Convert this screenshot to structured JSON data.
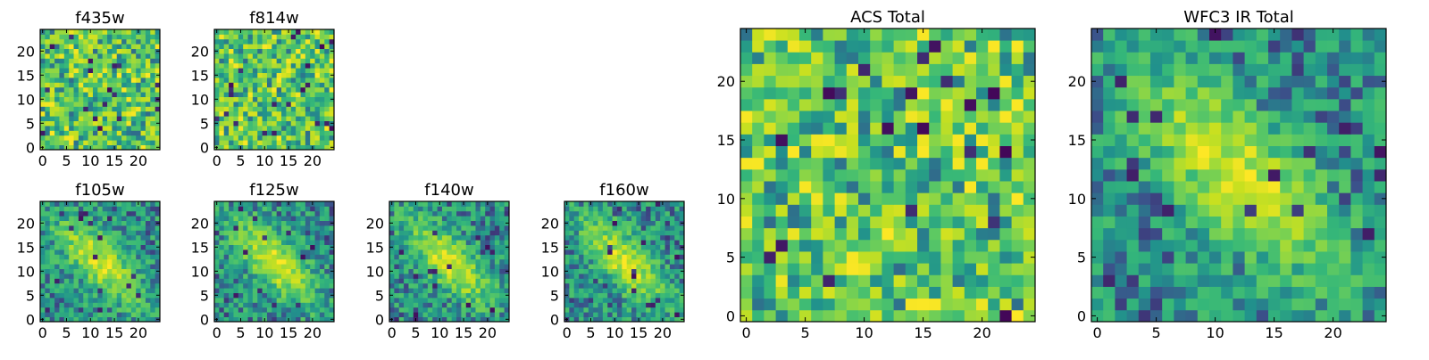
{
  "chart_data": [
    {
      "type": "heatmap",
      "title": "f435w",
      "xticks": [
        "0",
        "5",
        "10",
        "15",
        "20"
      ],
      "yticks": [
        "0",
        "5",
        "10",
        "15",
        "20"
      ],
      "xlim": [
        0,
        24
      ],
      "ylim": [
        0,
        24
      ],
      "pattern": "noise"
    },
    {
      "type": "heatmap",
      "title": "f814w",
      "xticks": [
        "0",
        "5",
        "10",
        "15",
        "20"
      ],
      "yticks": [
        "0",
        "5",
        "10",
        "15",
        "20"
      ],
      "xlim": [
        0,
        24
      ],
      "ylim": [
        0,
        24
      ],
      "pattern": "noise"
    },
    {
      "type": "heatmap",
      "title": "f105w",
      "xticks": [
        "0",
        "5",
        "10",
        "15",
        "20"
      ],
      "yticks": [
        "0",
        "5",
        "10",
        "15",
        "20"
      ],
      "xlim": [
        0,
        24
      ],
      "ylim": [
        0,
        24
      ],
      "pattern": "diagonal-source"
    },
    {
      "type": "heatmap",
      "title": "f125w",
      "xticks": [
        "0",
        "5",
        "10",
        "15",
        "20"
      ],
      "yticks": [
        "0",
        "5",
        "10",
        "15",
        "20"
      ],
      "xlim": [
        0,
        24
      ],
      "ylim": [
        0,
        24
      ],
      "pattern": "diagonal-source"
    },
    {
      "type": "heatmap",
      "title": "f140w",
      "xticks": [
        "0",
        "5",
        "10",
        "15",
        "20"
      ],
      "yticks": [
        "0",
        "5",
        "10",
        "15",
        "20"
      ],
      "xlim": [
        0,
        24
      ],
      "ylim": [
        0,
        24
      ],
      "pattern": "diagonal-source"
    },
    {
      "type": "heatmap",
      "title": "f160w",
      "xticks": [
        "0",
        "5",
        "10",
        "15",
        "20"
      ],
      "yticks": [
        "0",
        "5",
        "10",
        "15",
        "20"
      ],
      "xlim": [
        0,
        24
      ],
      "ylim": [
        0,
        24
      ],
      "pattern": "diagonal-source"
    },
    {
      "type": "heatmap",
      "title": "ACS Total",
      "xticks": [
        "0",
        "5",
        "10",
        "15",
        "20"
      ],
      "yticks": [
        "0",
        "5",
        "10",
        "15",
        "20"
      ],
      "xlim": [
        0,
        24
      ],
      "ylim": [
        0,
        24
      ],
      "pattern": "noise"
    },
    {
      "type": "heatmap",
      "title": "WFC3 IR Total",
      "xticks": [
        "0",
        "5",
        "10",
        "15",
        "20"
      ],
      "yticks": [
        "0",
        "5",
        "10",
        "15",
        "20"
      ],
      "xlim": [
        0,
        24
      ],
      "ylim": [
        0,
        24
      ],
      "pattern": "diagonal-source"
    }
  ],
  "colormap": [
    "#440154",
    "#3b528b",
    "#21918c",
    "#35b779",
    "#5ec962",
    "#90d743",
    "#c8e020",
    "#fde725"
  ]
}
